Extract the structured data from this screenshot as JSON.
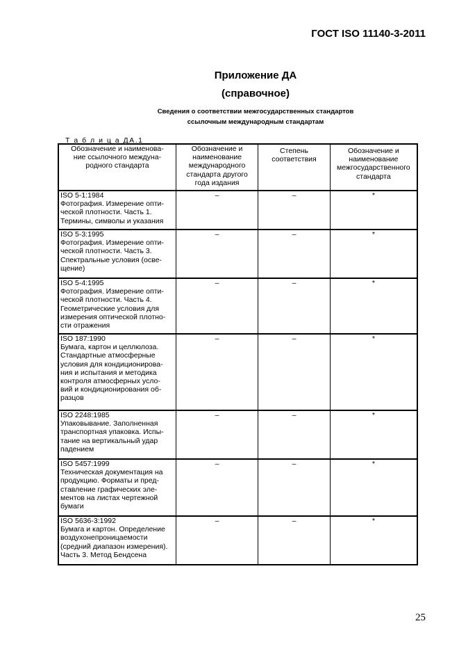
{
  "header": {
    "doc_id": "ГОСТ ISO 11140-3-2011"
  },
  "title": "Приложение ДА",
  "subtitle": "(справочное)",
  "caption": "Сведения о соответствии межгосударственных стандартов\nссылочным международным стандартам",
  "table": {
    "label": "Т а б л и ц а  ДА.1",
    "columns": [
      "Обозначение и наименова-\nние ссылочного междуна-\nродного стандарта",
      "Обозначение и\nнаименование\nмеждународного\nстандарта другого\nгода издания",
      "Степень\nсоответствия",
      "Обозначение и\nнаименование\nмежгосударственного\nстандарта"
    ],
    "rows": [
      {
        "ref": "ISO 5-1:1984\nФотография. Измерение опти-\nческой плотности. Часть 1.\nТермины, символы и указания",
        "other": "–",
        "degree": "–",
        "interstate": "*"
      },
      {
        "ref": "ISO 5-3:1995\nФотография. Измерение опти-\nческой плотности. Часть 3.\nСпектральные условия (осве-\nщение)",
        "other": "–",
        "degree": "–",
        "interstate": "*"
      },
      {
        "ref": "ISO 5-4:1995\nФотография. Измерение опти-\nческой плотности. Часть 4.\nГеометрические условия для\nизмерения оптической плотно-\nсти отражения",
        "other": "–",
        "degree": "–",
        "interstate": "*"
      },
      {
        "ref": "ISO 187:1990\nБумага, картон и целлюлоза.\nСтандартные атмосферные\nусловия для кондиционирова-\nния и испытания и методика\nконтроля атмосферных усло-\nвий и кондиционирования об-\nразцов",
        "other": "–",
        "degree": "–",
        "interstate": "*"
      },
      {
        "ref": "ISO 2248:1985\nУпаковывание. Заполненная\nтранспортная упаковка. Испы-\nтание на вертикальный удар\nпадением",
        "other": "–",
        "degree": "–",
        "interstate": "*"
      },
      {
        "ref": "ISO 5457:1999\nТехническая документация на\nпродукцию. Форматы и пред-\nставление графических эле-\nментов на листах чертежной\nбумаги",
        "other": "–",
        "degree": "–",
        "interstate": "*"
      },
      {
        "ref": "ISO 5636-3:1992\nБумага и картон. Определение\nвоздухонепроницаемости\n(средний диапазон измерения).\nЧасть 3. Метод Бендсена",
        "other": "–",
        "degree": "–",
        "interstate": "*"
      }
    ]
  },
  "page_number": "25"
}
